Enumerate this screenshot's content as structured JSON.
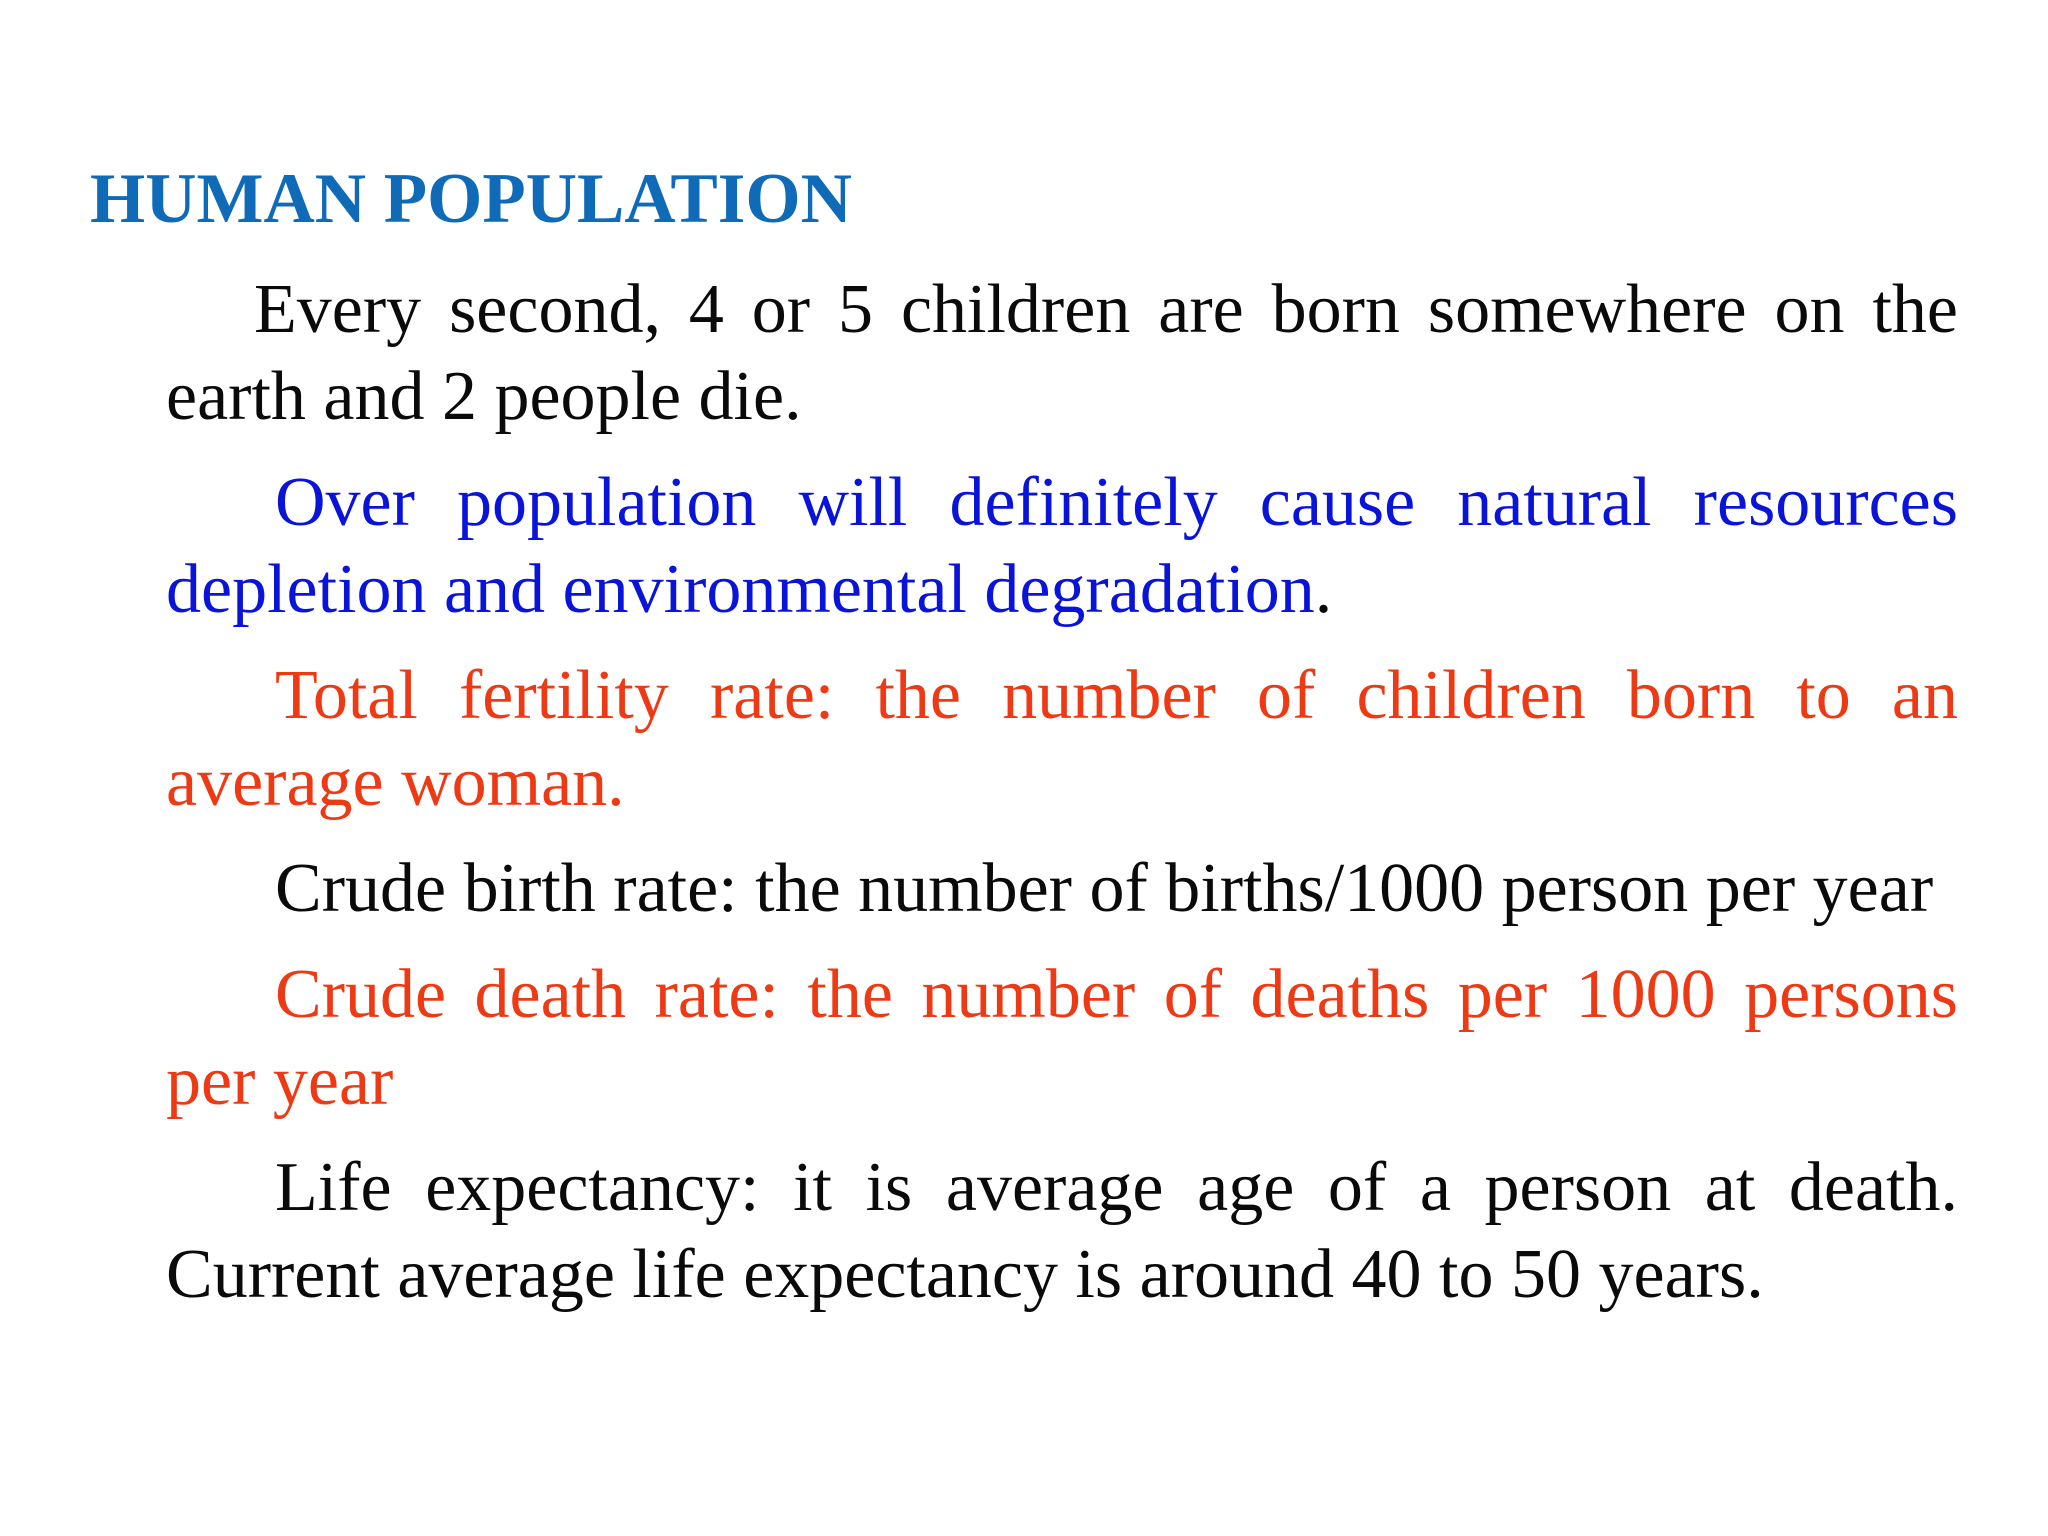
{
  "slide": {
    "title": "HUMAN POPULATION",
    "colors": {
      "title": "#0f6ab8",
      "black_text": "#0a0a0a",
      "blue_text": "#0a13d8",
      "red_text": "#ee3a14"
    },
    "paragraphs": [
      {
        "text": "Every second, 4 or 5 children are born somewhere on the earth and 2 people die.",
        "color": "black"
      },
      {
        "text": "Over population will definitely cause natural resources depletion and environmental degradation",
        "trailing": ".",
        "color": "blue"
      },
      {
        "text": "Total fertility rate: the number of children born to an average woman.",
        "color": "red"
      },
      {
        "text": "Crude birth rate: the number of births/1000 person per year",
        "color": "black"
      },
      {
        "text": "Crude death rate: the number of deaths per 1000 persons per year",
        "color": "red"
      },
      {
        "text": "Life expectancy: it is average age of a person at death. Current average life expectancy is around 40 to 50 years.",
        "color": "black"
      }
    ]
  }
}
